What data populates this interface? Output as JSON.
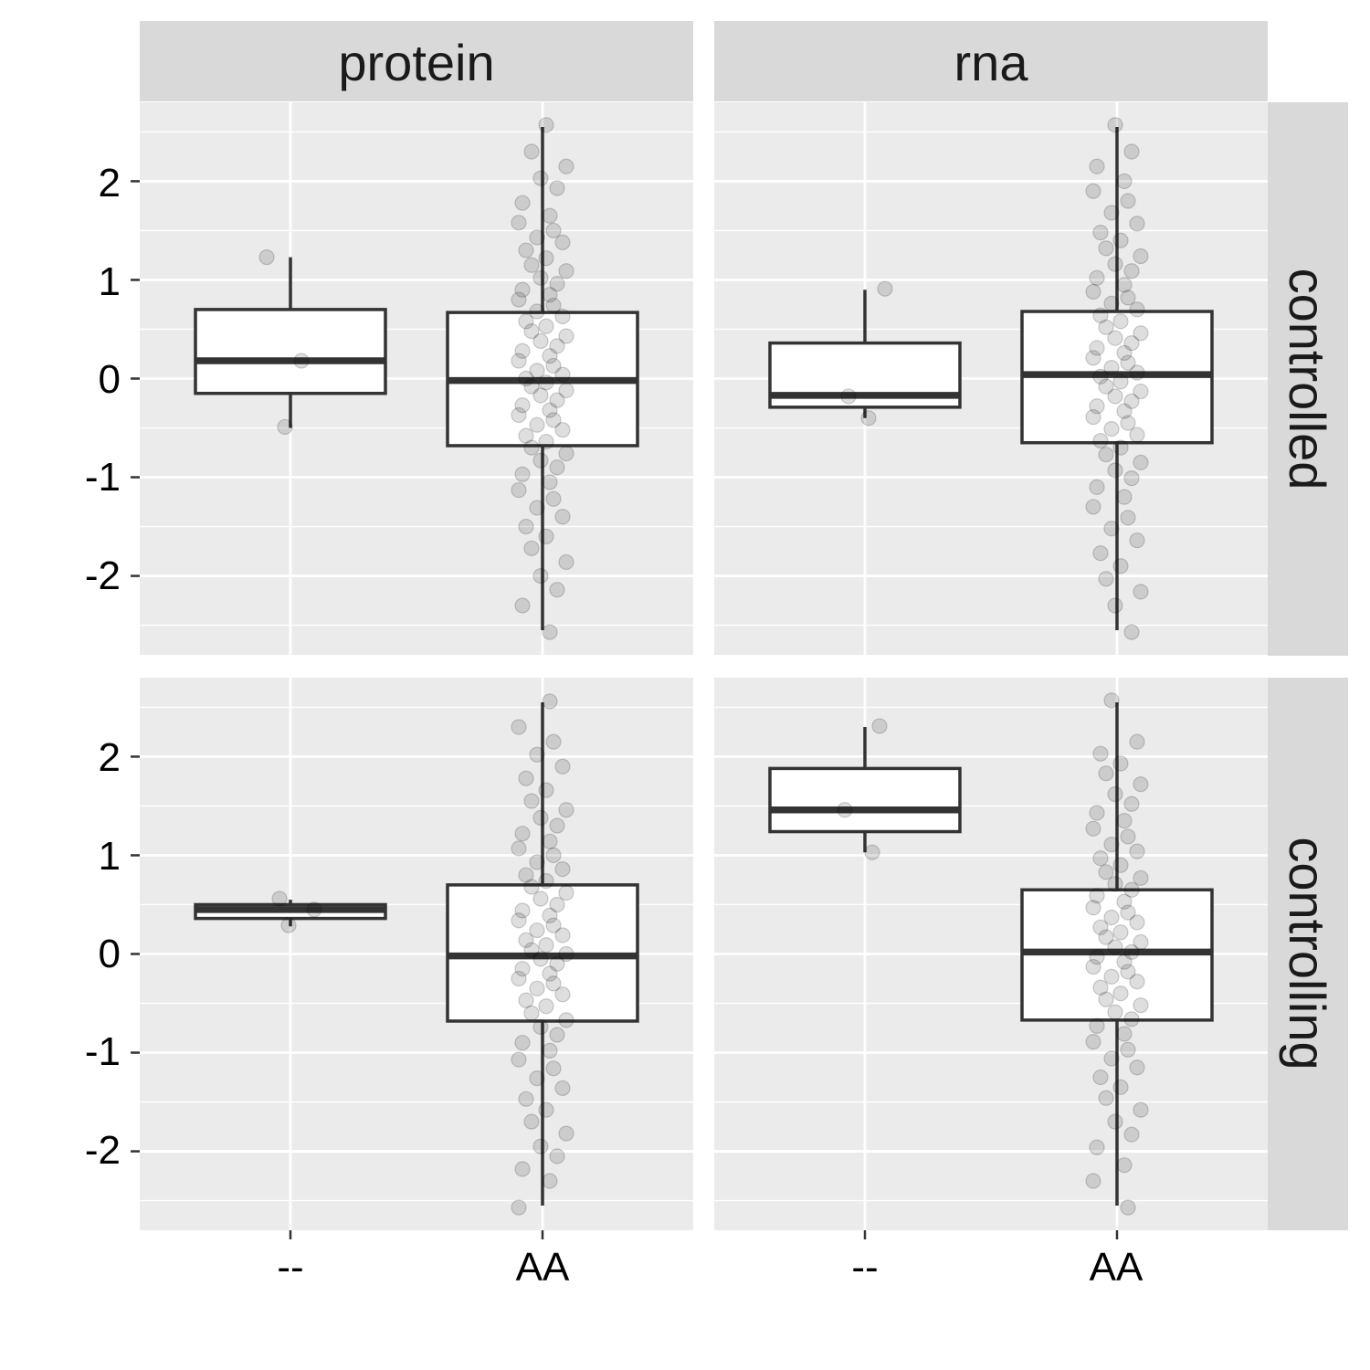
{
  "chart_data": {
    "type": "boxplot",
    "facet_columns": [
      "protein",
      "rna"
    ],
    "facet_rows": [
      "controlled",
      "controlling"
    ],
    "categories": [
      "--",
      "AA"
    ],
    "y_ticks": [
      2,
      1,
      0,
      -1,
      -2
    ],
    "y_tick_labels": [
      "2",
      "1",
      "0",
      "-1",
      "-2"
    ],
    "ylim": [
      -2.8,
      2.8
    ],
    "grid": true,
    "legend": "none",
    "colors": {
      "panel_background": "#ebebeb",
      "strip_background": "#d9d9d9",
      "grid": "#ffffff",
      "box_fill": "#ffffff",
      "box_line": "#333333",
      "point": "#000000"
    },
    "panels": [
      {
        "column": "protein",
        "row": "controlled",
        "boxes": [
          {
            "category": "--",
            "min": -0.5,
            "q1": -0.15,
            "median": 0.18,
            "q3": 0.7,
            "max": 1.23
          },
          {
            "category": "AA",
            "min": -2.55,
            "q1": -0.68,
            "median": -0.02,
            "q3": 0.67,
            "max": 2.55
          }
        ],
        "points": [
          {
            "category": "--",
            "values": [
              1.23,
              0.18,
              -0.49
            ]
          },
          {
            "category": "AA",
            "values": [
              2.57,
              2.3,
              2.15,
              2.03,
              1.93,
              1.78,
              1.65,
              1.58,
              1.5,
              1.43,
              1.38,
              1.3,
              1.22,
              1.15,
              1.09,
              1.02,
              0.96,
              0.9,
              0.85,
              0.8,
              0.74,
              0.68,
              0.63,
              0.58,
              0.53,
              0.48,
              0.43,
              0.38,
              0.33,
              0.28,
              0.23,
              0.18,
              0.13,
              0.08,
              0.04,
              0.0,
              -0.04,
              -0.08,
              -0.12,
              -0.17,
              -0.22,
              -0.27,
              -0.32,
              -0.37,
              -0.42,
              -0.47,
              -0.52,
              -0.58,
              -0.64,
              -0.7,
              -0.76,
              -0.83,
              -0.9,
              -0.97,
              -1.05,
              -1.13,
              -1.22,
              -1.31,
              -1.4,
              -1.5,
              -1.6,
              -1.72,
              -1.86,
              -2.0,
              -2.14,
              -2.3,
              -2.57
            ]
          }
        ]
      },
      {
        "column": "rna",
        "row": "controlled",
        "boxes": [
          {
            "category": "--",
            "min": -0.4,
            "q1": -0.29,
            "median": -0.17,
            "q3": 0.36,
            "max": 0.9
          },
          {
            "category": "AA",
            "min": -2.55,
            "q1": -0.65,
            "median": 0.04,
            "q3": 0.68,
            "max": 2.55
          }
        ],
        "points": [
          {
            "category": "--",
            "values": [
              0.91,
              -0.18,
              -0.4
            ]
          },
          {
            "category": "AA",
            "values": [
              2.57,
              2.3,
              2.15,
              2.0,
              1.9,
              1.8,
              1.68,
              1.57,
              1.48,
              1.4,
              1.32,
              1.24,
              1.16,
              1.09,
              1.02,
              0.95,
              0.88,
              0.82,
              0.76,
              0.7,
              0.64,
              0.58,
              0.52,
              0.46,
              0.41,
              0.36,
              0.31,
              0.26,
              0.21,
              0.16,
              0.11,
              0.06,
              0.02,
              -0.03,
              -0.08,
              -0.13,
              -0.18,
              -0.23,
              -0.28,
              -0.33,
              -0.39,
              -0.45,
              -0.51,
              -0.57,
              -0.63,
              -0.7,
              -0.77,
              -0.85,
              -0.93,
              -1.01,
              -1.1,
              -1.2,
              -1.3,
              -1.41,
              -1.52,
              -1.64,
              -1.77,
              -1.9,
              -2.03,
              -2.16,
              -2.3,
              -2.57
            ]
          }
        ]
      },
      {
        "column": "protein",
        "row": "controlling",
        "boxes": [
          {
            "category": "--",
            "min": 0.28,
            "q1": 0.36,
            "median": 0.45,
            "q3": 0.5,
            "max": 0.55
          },
          {
            "category": "AA",
            "min": -2.55,
            "q1": -0.68,
            "median": -0.02,
            "q3": 0.7,
            "max": 2.55
          }
        ],
        "points": [
          {
            "category": "--",
            "values": [
              0.56,
              0.45,
              0.29
            ]
          },
          {
            "category": "AA",
            "values": [
              2.56,
              2.3,
              2.15,
              2.02,
              1.9,
              1.78,
              1.66,
              1.55,
              1.46,
              1.38,
              1.3,
              1.22,
              1.14,
              1.07,
              1.0,
              0.93,
              0.86,
              0.8,
              0.74,
              0.68,
              0.62,
              0.56,
              0.5,
              0.44,
              0.39,
              0.34,
              0.29,
              0.24,
              0.19,
              0.14,
              0.09,
              0.04,
              0.0,
              -0.05,
              -0.1,
              -0.15,
              -0.2,
              -0.25,
              -0.3,
              -0.35,
              -0.41,
              -0.47,
              -0.53,
              -0.6,
              -0.67,
              -0.74,
              -0.82,
              -0.9,
              -0.98,
              -1.07,
              -1.16,
              -1.26,
              -1.36,
              -1.47,
              -1.58,
              -1.7,
              -1.82,
              -1.95,
              -2.05,
              -2.18,
              -2.3,
              -2.57
            ]
          }
        ]
      },
      {
        "column": "rna",
        "row": "controlling",
        "boxes": [
          {
            "category": "--",
            "min": 1.03,
            "q1": 1.24,
            "median": 1.46,
            "q3": 1.88,
            "max": 2.3
          },
          {
            "category": "AA",
            "min": -2.55,
            "q1": -0.67,
            "median": 0.02,
            "q3": 0.65,
            "max": 2.55
          }
        ],
        "points": [
          {
            "category": "--",
            "values": [
              2.31,
              1.46,
              1.03
            ]
          },
          {
            "category": "AA",
            "values": [
              2.57,
              2.15,
              2.03,
              1.93,
              1.83,
              1.72,
              1.62,
              1.52,
              1.43,
              1.35,
              1.27,
              1.19,
              1.11,
              1.04,
              0.97,
              0.9,
              0.83,
              0.77,
              0.71,
              0.65,
              0.59,
              0.53,
              0.47,
              0.42,
              0.37,
              0.32,
              0.27,
              0.22,
              0.17,
              0.12,
              0.07,
              0.02,
              -0.03,
              -0.08,
              -0.13,
              -0.18,
              -0.23,
              -0.28,
              -0.34,
              -0.4,
              -0.46,
              -0.52,
              -0.59,
              -0.66,
              -0.73,
              -0.81,
              -0.89,
              -0.97,
              -1.06,
              -1.15,
              -1.25,
              -1.35,
              -1.46,
              -1.58,
              -1.7,
              -1.83,
              -1.96,
              -2.14,
              -2.3,
              -2.57
            ]
          }
        ]
      }
    ]
  }
}
